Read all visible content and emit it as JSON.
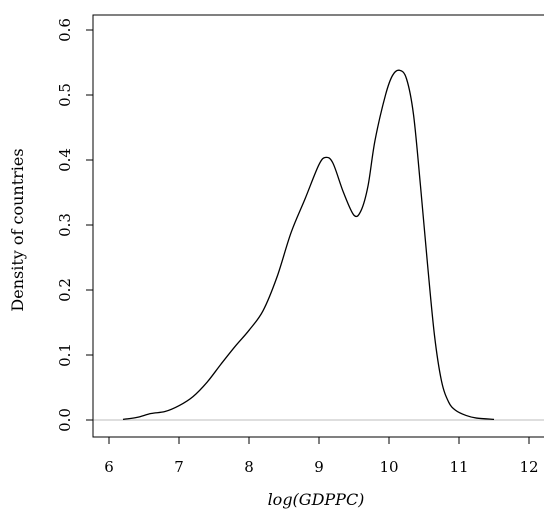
{
  "chart_data": {
    "type": "line",
    "title": "",
    "xlabel": "log(GDPPC)",
    "ylabel": "Density of countries",
    "xlim": [
      6,
      12
    ],
    "ylim": [
      0,
      0.6
    ],
    "x_ticks": [
      "6",
      "7",
      "8",
      "9",
      "10",
      "11",
      "12"
    ],
    "y_ticks": [
      "0.0",
      "0.1",
      "0.2",
      "0.3",
      "0.4",
      "0.5",
      "0.6"
    ],
    "grid": false,
    "baseline": 0,
    "series": [
      {
        "x": [
          6.2,
          6.4,
          6.6,
          6.8,
          7.0,
          7.2,
          7.4,
          7.6,
          7.8,
          8.0,
          8.2,
          8.4,
          8.6,
          8.8,
          9.0,
          9.1,
          9.2,
          9.35,
          9.5,
          9.6,
          9.7,
          9.8,
          9.95,
          10.05,
          10.15,
          10.25,
          10.35,
          10.45,
          10.55,
          10.65,
          10.75,
          10.85,
          10.95,
          11.1,
          11.25,
          11.5
        ],
        "y": [
          0.001,
          0.004,
          0.01,
          0.013,
          0.022,
          0.036,
          0.058,
          0.086,
          0.113,
          0.138,
          0.168,
          0.22,
          0.288,
          0.34,
          0.393,
          0.404,
          0.395,
          0.35,
          0.315,
          0.322,
          0.36,
          0.43,
          0.5,
          0.53,
          0.538,
          0.525,
          0.47,
          0.36,
          0.24,
          0.13,
          0.06,
          0.028,
          0.015,
          0.007,
          0.003,
          0.001
        ]
      }
    ]
  }
}
